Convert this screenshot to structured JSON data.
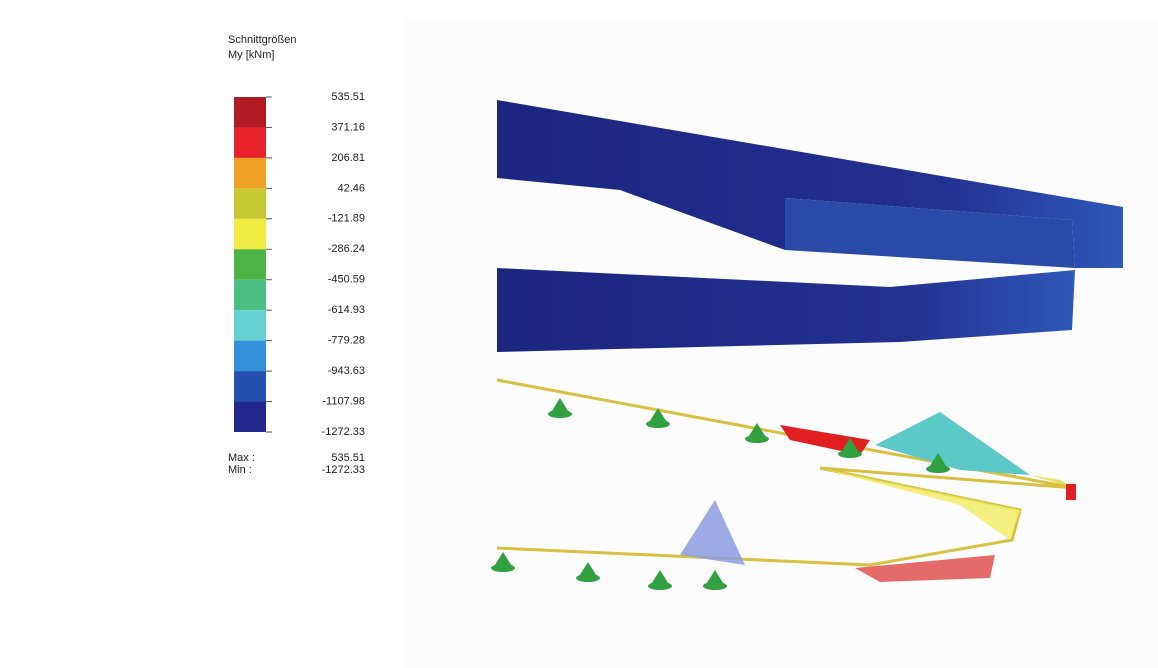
{
  "legend": {
    "title": "Schnittgrößen",
    "quantity": "My [kNm]",
    "levels": [
      "535.51",
      "371.16",
      "206.81",
      "42.46",
      "-121.89",
      "-286.24",
      "-450.59",
      "-614.93",
      "-779.28",
      "-943.63",
      "-1107.98",
      "-1272.33"
    ],
    "colors": [
      "#b01c24",
      "#e8222a",
      "#f0a024",
      "#c8c834",
      "#f0ec44",
      "#4cb444",
      "#4cc084",
      "#64d0d4",
      "#3490d8",
      "#2450b0",
      "#20288c"
    ],
    "max_label": "Max :",
    "max_value": "535.51",
    "min_label": "Min :",
    "min_value": "-1272.33"
  }
}
